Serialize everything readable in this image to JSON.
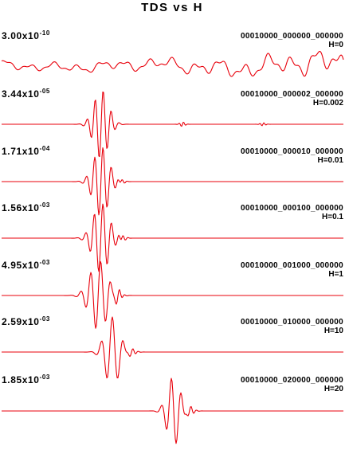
{
  "chart_data": {
    "type": "line",
    "title": "TDS vs H",
    "x_axis": "time (unlabeled)",
    "line_color": "#e8000b",
    "series": [
      {
        "name": "00010000_000000_000000",
        "label": "H=0",
        "amp_mantissa": "3.00x10",
        "amp_exp": "-10",
        "H": 0
      },
      {
        "name": "00010000_000002_000000",
        "label": "H=0.002",
        "amp_mantissa": "3.44x10",
        "amp_exp": "-05",
        "H": 0.002
      },
      {
        "name": "00010000_000010_000000",
        "label": "H=0.01",
        "amp_mantissa": "1.71x10",
        "amp_exp": "-04",
        "H": 0.01
      },
      {
        "name": "00010000_000100_000000",
        "label": "H=0.1",
        "amp_mantissa": "1.56x10",
        "amp_exp": "-03",
        "H": 0.1
      },
      {
        "name": "00010000_001000_000000",
        "label": "H=1",
        "amp_mantissa": "4.95x10",
        "amp_exp": "-03",
        "H": 1
      },
      {
        "name": "00010000_010000_000000",
        "label": "H=10",
        "amp_mantissa": "2.59x10",
        "amp_exp": "-03",
        "H": 10
      },
      {
        "name": "00010000_020000_000000",
        "label": "H=20",
        "amp_mantissa": "1.85x10",
        "amp_exp": "-03",
        "H": 20
      }
    ]
  }
}
